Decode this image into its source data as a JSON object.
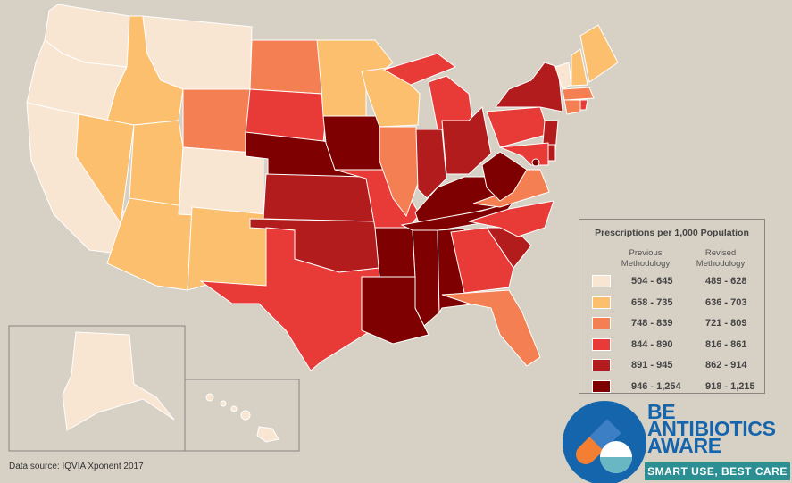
{
  "legend": {
    "title": "Prescriptions per 1,000 Population",
    "col_previous": "Previous Methodology",
    "col_revised": "Revised Methodology",
    "rows": [
      {
        "previous": "504 - 645",
        "revised": "489 - 628",
        "color": "#f8e6d2"
      },
      {
        "previous": "658 - 735",
        "revised": "636 - 703",
        "color": "#fbbf6e"
      },
      {
        "previous": "748 - 839",
        "revised": "721 - 809",
        "color": "#f47f52"
      },
      {
        "previous": "844 - 890",
        "revised": "816 - 861",
        "color": "#e83a37"
      },
      {
        "previous": "891 - 945",
        "revised": "862 - 914",
        "color": "#b21c1d"
      },
      {
        "previous": "946 - 1,254",
        "revised": "918 - 1,215",
        "color": "#7f0000"
      }
    ]
  },
  "state_categories": {
    "WA": 0,
    "OR": 0,
    "CA": 0,
    "ID": 1,
    "NV": 1,
    "MT": 0,
    "WY": 2,
    "UT": 1,
    "AZ": 1,
    "CO": 0,
    "NM": 1,
    "ND": 2,
    "SD": 3,
    "NE": 5,
    "KS": 4,
    "OK": 4,
    "TX": 3,
    "MN": 1,
    "IA": 5,
    "MO": 3,
    "AR": 5,
    "LA": 5,
    "WI": 1,
    "IL": 2,
    "MI": 3,
    "MIU": 3,
    "IN": 4,
    "OH": 4,
    "KY": 5,
    "TN": 5,
    "MS": 5,
    "AL": 5,
    "GA": 3,
    "FL": 2,
    "SC": 4,
    "NC": 3,
    "VA": 2,
    "WV": 5,
    "PA": 3,
    "NY": 4,
    "VT": 0,
    "NH": 1,
    "ME": 1,
    "MA": 2,
    "CT": 2,
    "RI": 3,
    "NJ": 4,
    "DE": 4,
    "MD": 3,
    "DC": 5,
    "AK": 0,
    "HI": 0
  },
  "source": "Data source: IQVIA Xponent 2017",
  "logo": {
    "line1": "BE",
    "line2": "ANTIBIOTICS",
    "line3": "AWARE",
    "tagline": "SMART USE, BEST CARE",
    "brand_blue": "#1565ad",
    "brand_teal": "#2b8f94"
  }
}
